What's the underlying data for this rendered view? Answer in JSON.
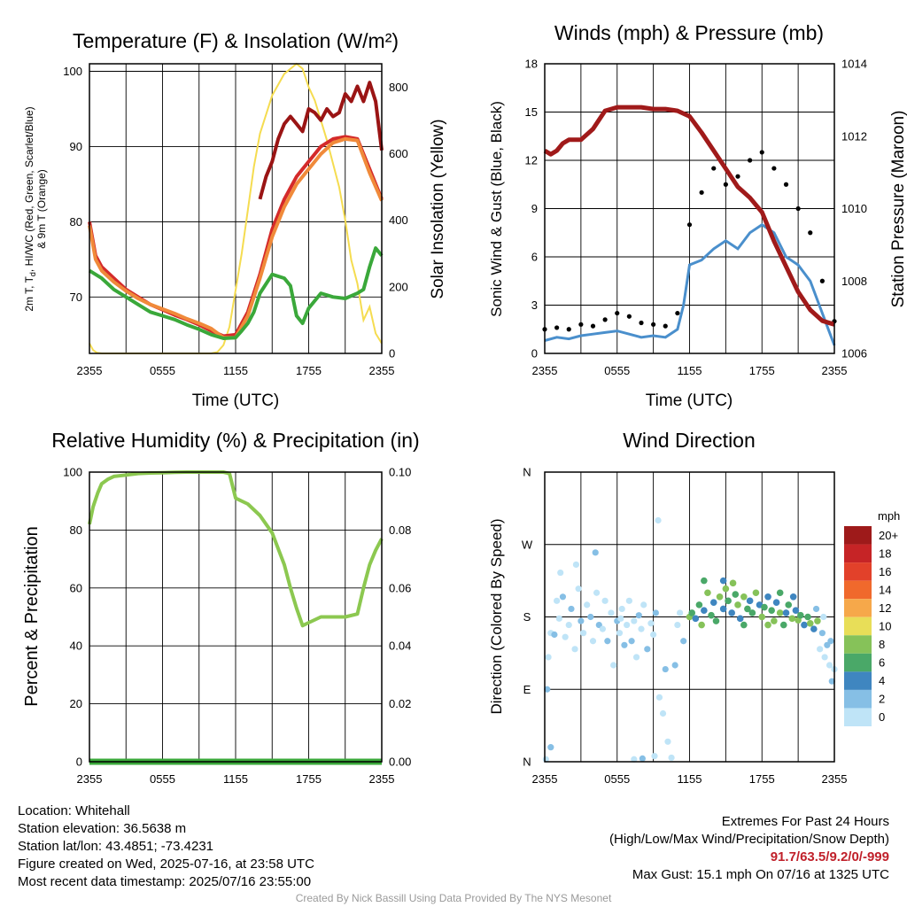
{
  "chart_data": [
    {
      "type": "line",
      "title": "Temperature (F) & Insolation (W/m²)",
      "xlabel": "Time (UTC)",
      "ylabel": "2m T, Td, HI/WC (Red, Green, Scarlet/Blue) & 9m T (Orange)",
      "ylabel_lines": [
        "2m T, T",
        "d",
        ", HI/WC (Red, Green, Scarlet/Blue)",
        "& 9m T (Orange)"
      ],
      "y2label": "Solar Insolation (Yellow)",
      "xticks": [
        "2355",
        "0555",
        "1155",
        "1755",
        "2355"
      ],
      "xlim": [
        0,
        24
      ],
      "ylim": [
        62.5,
        101
      ],
      "yticks": [
        70,
        80,
        90,
        100
      ],
      "y2lim": [
        0,
        870
      ],
      "y2ticks": [
        0,
        200,
        400,
        600,
        800
      ],
      "grid": true,
      "series": [
        {
          "color": "#d42a2a",
          "x": [
            0,
            0.5,
            1,
            2,
            3,
            4,
            5,
            6,
            7,
            8,
            9,
            10,
            11,
            12,
            13,
            14,
            15,
            16,
            17,
            18,
            19,
            20,
            21,
            22,
            23,
            24
          ],
          "y": [
            80,
            75.5,
            74,
            72.5,
            71,
            70,
            69,
            68.3,
            67.6,
            67,
            66.3,
            65.5,
            64.8,
            65,
            68,
            73,
            79,
            83,
            86,
            88,
            90,
            91,
            91.3,
            91,
            87,
            83
          ]
        },
        {
          "color": "#f08a3a",
          "x": [
            0,
            0.5,
            1,
            2,
            3,
            4,
            5,
            6,
            7,
            8,
            9,
            10,
            11,
            12,
            13,
            14,
            15,
            16,
            17,
            18,
            19,
            20,
            21,
            22,
            23,
            24
          ],
          "y": [
            79.5,
            75,
            73.5,
            72,
            70.8,
            69.8,
            69,
            68.4,
            67.8,
            67.1,
            66.5,
            65.8,
            64.6,
            64.6,
            67.5,
            72.5,
            78,
            82,
            85,
            87,
            89,
            90.5,
            91,
            90.8,
            86.5,
            82.8
          ]
        },
        {
          "color": "#3aa83a",
          "x": [
            0,
            1,
            2,
            3,
            4,
            5,
            6,
            7,
            8,
            9,
            10,
            11,
            12,
            12.5,
            13,
            13.5,
            14,
            15,
            16,
            16.5,
            17,
            17.5,
            18,
            19,
            20,
            21,
            22,
            22.5,
            23,
            23.5,
            24
          ],
          "y": [
            73.5,
            72.5,
            71,
            70,
            69,
            68,
            67.5,
            67,
            66.3,
            65.7,
            65,
            64.5,
            64.6,
            65.5,
            66.5,
            68,
            70.5,
            73,
            72.5,
            71.5,
            67.5,
            66.5,
            68.5,
            70.5,
            70,
            69.8,
            70.5,
            71,
            74,
            76.5,
            75.5
          ]
        },
        {
          "color": "#9a1414",
          "x": [
            14,
            14.5,
            15,
            15.5,
            16,
            16.5,
            17,
            17.5,
            18,
            18.5,
            19,
            19.5,
            20,
            20.5,
            21,
            21.5,
            22,
            22.5,
            23,
            23.5,
            24
          ],
          "y": [
            83,
            86,
            88,
            91,
            93,
            94,
            93,
            92,
            95,
            94.5,
            93.5,
            95,
            94,
            94.5,
            97,
            96,
            98,
            96,
            98.5,
            96,
            89.5
          ]
        }
      ],
      "y2series": {
        "color": "#f5dc50",
        "x": [
          0,
          0.3,
          0.6,
          1,
          2,
          3,
          4,
          5,
          6,
          7,
          8,
          9,
          10,
          10.5,
          11,
          11.5,
          12,
          12.5,
          13,
          13.5,
          14,
          15,
          16,
          17,
          17.5,
          18,
          18.5,
          19,
          19.5,
          20,
          20.5,
          21,
          21.5,
          22,
          22.5,
          23,
          23.5,
          24
        ],
        "y": [
          30,
          10,
          2,
          0,
          0,
          0,
          0,
          0,
          0,
          0,
          0,
          0,
          0,
          4,
          25,
          80,
          190,
          300,
          430,
          560,
          660,
          775,
          840,
          870,
          855,
          800,
          760,
          700,
          640,
          570,
          500,
          400,
          280,
          210,
          100,
          140,
          60,
          30
        ]
      }
    },
    {
      "type": "line",
      "title": "Winds (mph) & Pressure (mb)",
      "xlabel": "Time (UTC)",
      "ylabel": "Sonic Wind & Gust (Blue, Black)",
      "y2label": "Station Pressure (Maroon)",
      "xticks": [
        "2355",
        "0555",
        "1155",
        "1755",
        "2355"
      ],
      "xlim": [
        0,
        24
      ],
      "ylim": [
        0,
        18
      ],
      "yticks": [
        0,
        3,
        6,
        9,
        12,
        15,
        18
      ],
      "y2lim": [
        1006,
        1014
      ],
      "y2ticks": [
        1006,
        1008,
        1010,
        1012,
        1014
      ],
      "grid": true,
      "wind": {
        "color": "#4a8fcc",
        "x": [
          0,
          1,
          2,
          3,
          4,
          5,
          6,
          7,
          8,
          9,
          10,
          11,
          11.5,
          12,
          13,
          14,
          15,
          16,
          17,
          18,
          19,
          20,
          21,
          22,
          23,
          23.5,
          24
        ],
        "y": [
          0.8,
          1,
          0.9,
          1.1,
          1.2,
          1.3,
          1.4,
          1.2,
          1,
          1.1,
          1,
          1.5,
          3,
          5.5,
          5.8,
          6.5,
          7,
          6.5,
          7.5,
          8,
          7.5,
          6,
          5.5,
          4.5,
          2.5,
          1.5,
          0.5
        ]
      },
      "gust": {
        "color": "#000000",
        "x": [
          0,
          1,
          2,
          3,
          4,
          5,
          6,
          7,
          8,
          9,
          10,
          11,
          12,
          13,
          14,
          15,
          16,
          17,
          18,
          19,
          20,
          21,
          22,
          23,
          24
        ],
        "y": [
          1.5,
          1.6,
          1.5,
          1.8,
          1.7,
          2.1,
          2.5,
          2.3,
          1.9,
          1.8,
          1.7,
          2.5,
          8,
          10,
          11.5,
          10.5,
          11,
          12,
          12.5,
          11.5,
          10.5,
          9,
          7.5,
          4.5,
          2
        ]
      },
      "pressure": {
        "color": "#a01a1a",
        "x": [
          0,
          0.5,
          1,
          1.5,
          2,
          3,
          4,
          5,
          6,
          7,
          8,
          9,
          10,
          11,
          12,
          13,
          14,
          15,
          16,
          17,
          18,
          19,
          20,
          21,
          22,
          23,
          24
        ],
        "y": [
          1011.6,
          1011.5,
          1011.6,
          1011.8,
          1011.9,
          1011.9,
          1012.2,
          1012.7,
          1012.8,
          1012.8,
          1012.8,
          1012.75,
          1012.75,
          1012.7,
          1012.55,
          1012.1,
          1011.6,
          1011.1,
          1010.6,
          1010.3,
          1009.9,
          1009.1,
          1008.4,
          1007.7,
          1007.2,
          1006.9,
          1006.8
        ]
      }
    },
    {
      "type": "line",
      "title": "Relative Humidity (%) & Precipitation (in)",
      "ylabel": "Percent & Precipitation",
      "xticks": [
        "2355",
        "0555",
        "1155",
        "1755",
        "2355"
      ],
      "xlim": [
        0,
        24
      ],
      "ylim": [
        0,
        100
      ],
      "yticks": [
        0,
        20,
        40,
        60,
        80,
        100
      ],
      "y2lim": [
        0,
        0.1
      ],
      "y2ticks": [
        "0.00",
        "0.02",
        "0.04",
        "0.06",
        "0.08",
        "0.10"
      ],
      "grid": true,
      "series": [
        {
          "color": "#8cc850",
          "x": [
            0,
            0.3,
            0.7,
            1,
            1.5,
            2,
            3,
            4,
            5,
            6,
            7,
            8,
            9,
            10,
            11,
            11.5,
            12,
            13,
            14,
            15,
            16,
            16.5,
            17,
            17.5,
            18,
            19,
            20,
            21,
            22,
            22.5,
            23,
            23.5,
            24
          ],
          "y": [
            82,
            88,
            93,
            96,
            97.5,
            98.5,
            99,
            99.5,
            99.7,
            99.8,
            99.9,
            100,
            100,
            100,
            100,
            99.5,
            91,
            89,
            85,
            79,
            68,
            60,
            53,
            47,
            48,
            50,
            50,
            50,
            51,
            60,
            68,
            73,
            77
          ]
        },
        {
          "color": "#3aa83a",
          "x": [
            0,
            24
          ],
          "y": [
            0,
            0
          ]
        }
      ]
    },
    {
      "type": "scatter",
      "title": "Wind Direction",
      "ylabel": "Direction (Colored By Speed)",
      "xticks": [
        "2355",
        "0555",
        "1155",
        "1755",
        "2355"
      ],
      "xlim": [
        0,
        24
      ],
      "ylim": [
        0,
        360
      ],
      "yticks": [
        "N",
        "E",
        "S",
        "W",
        "N"
      ],
      "grid": true,
      "colorbar": {
        "unit": "mph",
        "labels": [
          "20+",
          "18",
          "16",
          "14",
          "12",
          "10",
          "8",
          "6",
          "4",
          "2",
          "0"
        ],
        "colors": [
          "#9e1a1a",
          "#c62426",
          "#e2412a",
          "#f0692c",
          "#f6a84a",
          "#e8de58",
          "#86c259",
          "#4aa868",
          "#3f86c0",
          "#86bfe5",
          "#bfe4f7"
        ]
      },
      "points": [
        [
          0.2,
          90
        ],
        [
          0.3,
          130
        ],
        [
          0.5,
          160
        ],
        [
          0.8,
          158
        ],
        [
          1,
          200
        ],
        [
          1.2,
          178
        ],
        [
          1.5,
          205
        ],
        [
          1.7,
          155
        ],
        [
          2,
          170
        ],
        [
          2.2,
          190
        ],
        [
          2.5,
          140
        ],
        [
          2.8,
          215
        ],
        [
          3,
          175
        ],
        [
          3.2,
          160
        ],
        [
          3.5,
          195
        ],
        [
          3.8,
          180
        ],
        [
          4,
          150
        ],
        [
          4.3,
          210
        ],
        [
          4.5,
          170
        ],
        [
          4.8,
          165
        ],
        [
          5,
          200
        ],
        [
          5.2,
          150
        ],
        [
          5.5,
          185
        ],
        [
          5.7,
          120
        ],
        [
          6,
          175
        ],
        [
          6.2,
          160
        ],
        [
          6.4,
          190
        ],
        [
          6.6,
          145
        ],
        [
          6.8,
          170
        ],
        [
          7,
          200
        ],
        [
          7.2,
          150
        ],
        [
          7.4,
          175
        ],
        [
          7.6,
          130
        ],
        [
          7.8,
          182
        ],
        [
          8,
          165
        ],
        [
          8.2,
          195
        ],
        [
          8.5,
          140
        ],
        [
          8.8,
          172
        ],
        [
          9,
          158
        ],
        [
          9.2,
          185
        ],
        [
          9.5,
          80
        ],
        [
          9.8,
          60
        ],
        [
          10,
          115
        ],
        [
          10.2,
          25
        ],
        [
          10.5,
          5
        ],
        [
          10.8,
          120
        ],
        [
          11,
          170
        ],
        [
          11.2,
          185
        ],
        [
          11.5,
          150
        ],
        [
          1.3,
          235
        ],
        [
          2.6,
          245
        ],
        [
          4.2,
          260
        ],
        [
          6.3,
          178
        ],
        [
          9.1,
          7
        ],
        [
          0.5,
          18
        ],
        [
          0.1,
          3
        ],
        [
          7.4,
          3
        ],
        [
          8.1,
          4
        ],
        [
          9.4,
          300
        ]
      ],
      "points_mid": [
        [
          12,
          180
        ],
        [
          12.2,
          185
        ],
        [
          12.5,
          178
        ],
        [
          12.8,
          195
        ],
        [
          13,
          170
        ],
        [
          13.2,
          188
        ],
        [
          13.5,
          210
        ],
        [
          13.8,
          182
        ],
        [
          14,
          198
        ],
        [
          14.2,
          175
        ],
        [
          14.5,
          205
        ],
        [
          14.8,
          190
        ],
        [
          15,
          215
        ],
        [
          15.2,
          200
        ],
        [
          15.5,
          185
        ],
        [
          15.8,
          208
        ],
        [
          16,
          195
        ],
        [
          16.2,
          178
        ],
        [
          16.5,
          205
        ],
        [
          16.8,
          190
        ],
        [
          17,
          200
        ],
        [
          17.2,
          185
        ],
        [
          17.5,
          210
        ],
        [
          17.8,
          195
        ],
        [
          18,
          180
        ],
        [
          18.2,
          192
        ],
        [
          18.5,
          205
        ],
        [
          18.8,
          188
        ],
        [
          19,
          175
        ],
        [
          19.2,
          198
        ],
        [
          19.5,
          185
        ],
        [
          19.8,
          170
        ],
        [
          20,
          185
        ],
        [
          20.2,
          195
        ],
        [
          20.5,
          178
        ],
        [
          20.8,
          188
        ],
        [
          21,
          176
        ],
        [
          21.2,
          182
        ],
        [
          21.5,
          170
        ],
        [
          21.8,
          180
        ],
        [
          22,
          172
        ],
        [
          22.3,
          165
        ],
        [
          22.6,
          175
        ],
        [
          13.2,
          225
        ],
        [
          14.8,
          225
        ],
        [
          16.5,
          170
        ],
        [
          18.5,
          170
        ],
        [
          20.6,
          205
        ],
        [
          15.6,
          222
        ],
        [
          19.5,
          210
        ]
      ],
      "points_late": [
        [
          22.8,
          140
        ],
        [
          23,
          160
        ],
        [
          23.2,
          130
        ],
        [
          23.4,
          145
        ],
        [
          23.6,
          120
        ],
        [
          23.8,
          100
        ],
        [
          24,
          115
        ],
        [
          22.5,
          190
        ],
        [
          23.1,
          180
        ],
        [
          23.7,
          150
        ]
      ]
    }
  ],
  "info": {
    "location": "Location: Whitehall",
    "elevation": "Station elevation: 36.5638 m",
    "latlon": "Station lat/lon: 43.4851; -73.4231",
    "created": "Figure created on Wed, 2025-07-16, at 23:58 UTC",
    "recent": "Most recent data timestamp: 2025/07/16 23:55:00"
  },
  "extremes": {
    "title": "Extremes For Past 24 Hours",
    "subtitle": "(High/Low/Max Wind/Precipitation/Snow Depth)",
    "values": "91.7/63.5/9.2/0/-999",
    "gust": "Max Gust: 15.1 mph On 07/16 at 1325 UTC"
  },
  "credit": "Created By Nick Bassill Using Data Provided By The NYS Mesonet"
}
